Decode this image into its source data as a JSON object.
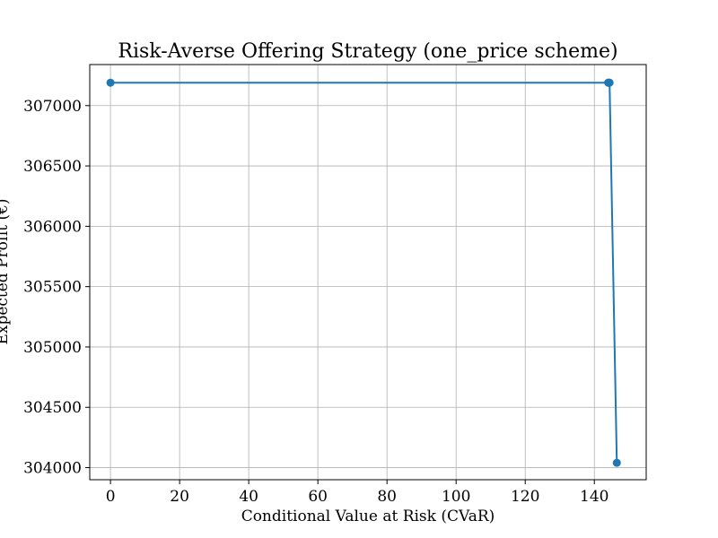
{
  "chart_data": {
    "type": "line",
    "title": "Risk-Averse Offering Strategy (one_price scheme)",
    "xlabel": "Conditional Value at Risk (CVaR)",
    "ylabel": "Expected Profit (€)",
    "xlim": [
      -6,
      155
    ],
    "ylim": [
      303900,
      307340
    ],
    "xticks": [
      0,
      20,
      40,
      60,
      80,
      100,
      120,
      140
    ],
    "yticks": [
      304000,
      304500,
      305000,
      305500,
      306000,
      306500,
      307000
    ],
    "grid": true,
    "series": [
      {
        "color": "#1f77b4",
        "marker": "circle",
        "x": [
          0,
          144,
          144.1,
          144.2,
          144.3,
          144.4,
          146.5
        ],
        "y": [
          307190,
          307190,
          307190,
          307190,
          307190,
          307190,
          304040
        ]
      }
    ]
  }
}
